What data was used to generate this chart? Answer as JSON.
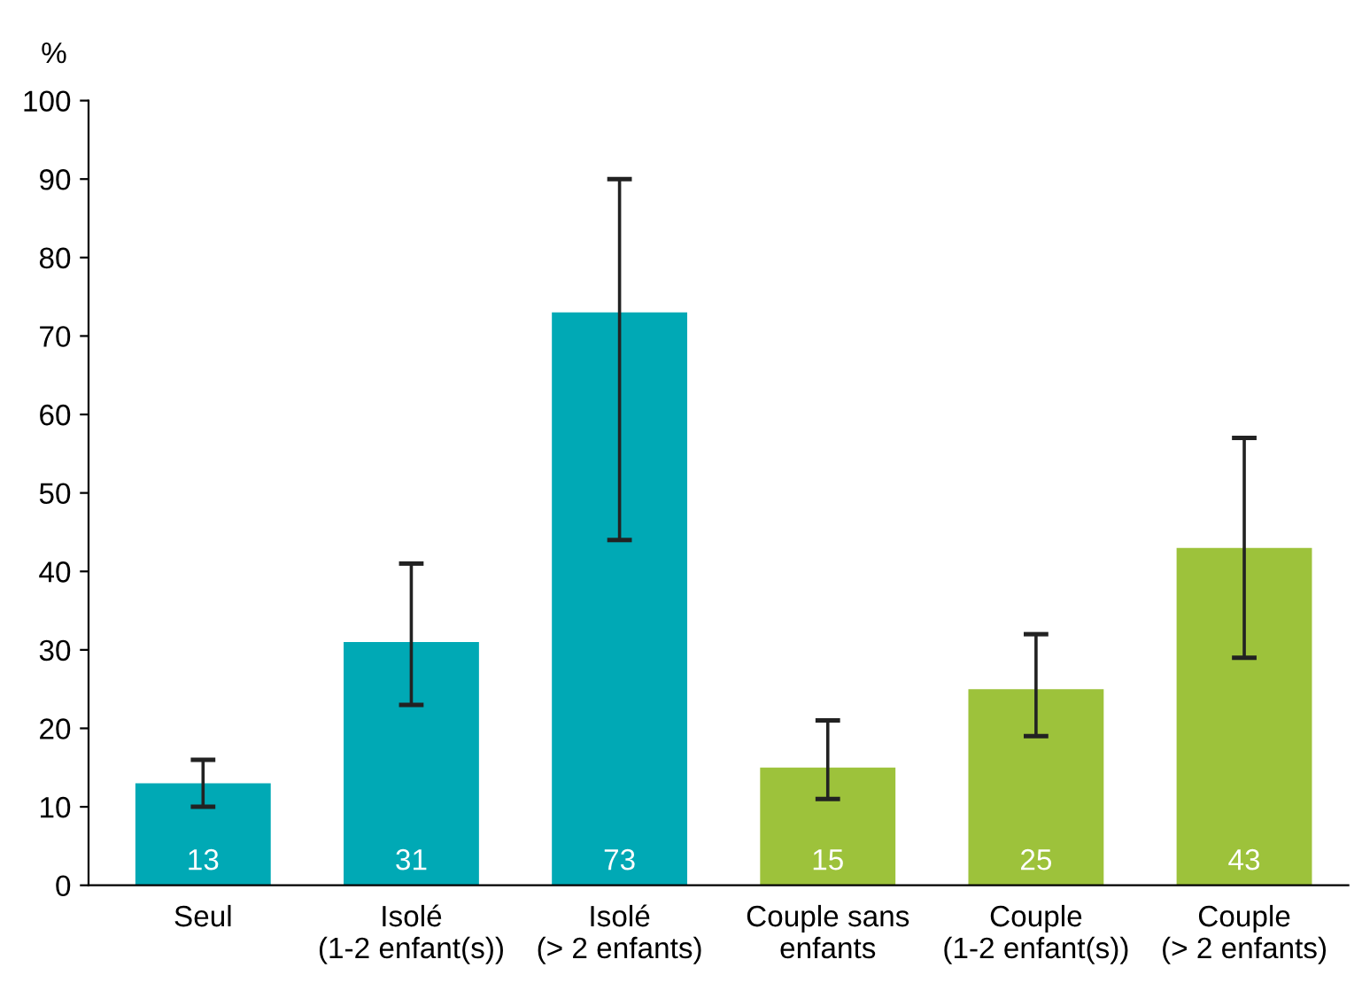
{
  "chart_data": {
    "type": "bar",
    "ylabel": "%",
    "categories": [
      "Seul",
      "Isolé\n(1-2 enfant(s))",
      "Isolé\n(> 2 enfants)",
      "Couple sans\nenfants",
      "Couple\n(1-2 enfant(s))",
      "Couple\n(> 2 enfants)"
    ],
    "values": [
      13,
      31,
      73,
      15,
      25,
      43
    ],
    "colors": [
      "#00a9b5",
      "#00a9b5",
      "#00a9b5",
      "#9dc23b",
      "#9dc23b",
      "#9dc23b"
    ],
    "errors": [
      [
        10,
        16
      ],
      [
        23,
        41
      ],
      [
        44,
        90
      ],
      [
        11,
        21
      ],
      [
        19,
        32
      ],
      [
        29,
        57
      ]
    ],
    "data_labels": true,
    "ylim": [
      0,
      100
    ],
    "yticks": [
      0,
      10,
      20,
      30,
      40,
      50,
      60,
      70,
      80,
      90,
      100
    ],
    "grid": false,
    "legend": false
  }
}
